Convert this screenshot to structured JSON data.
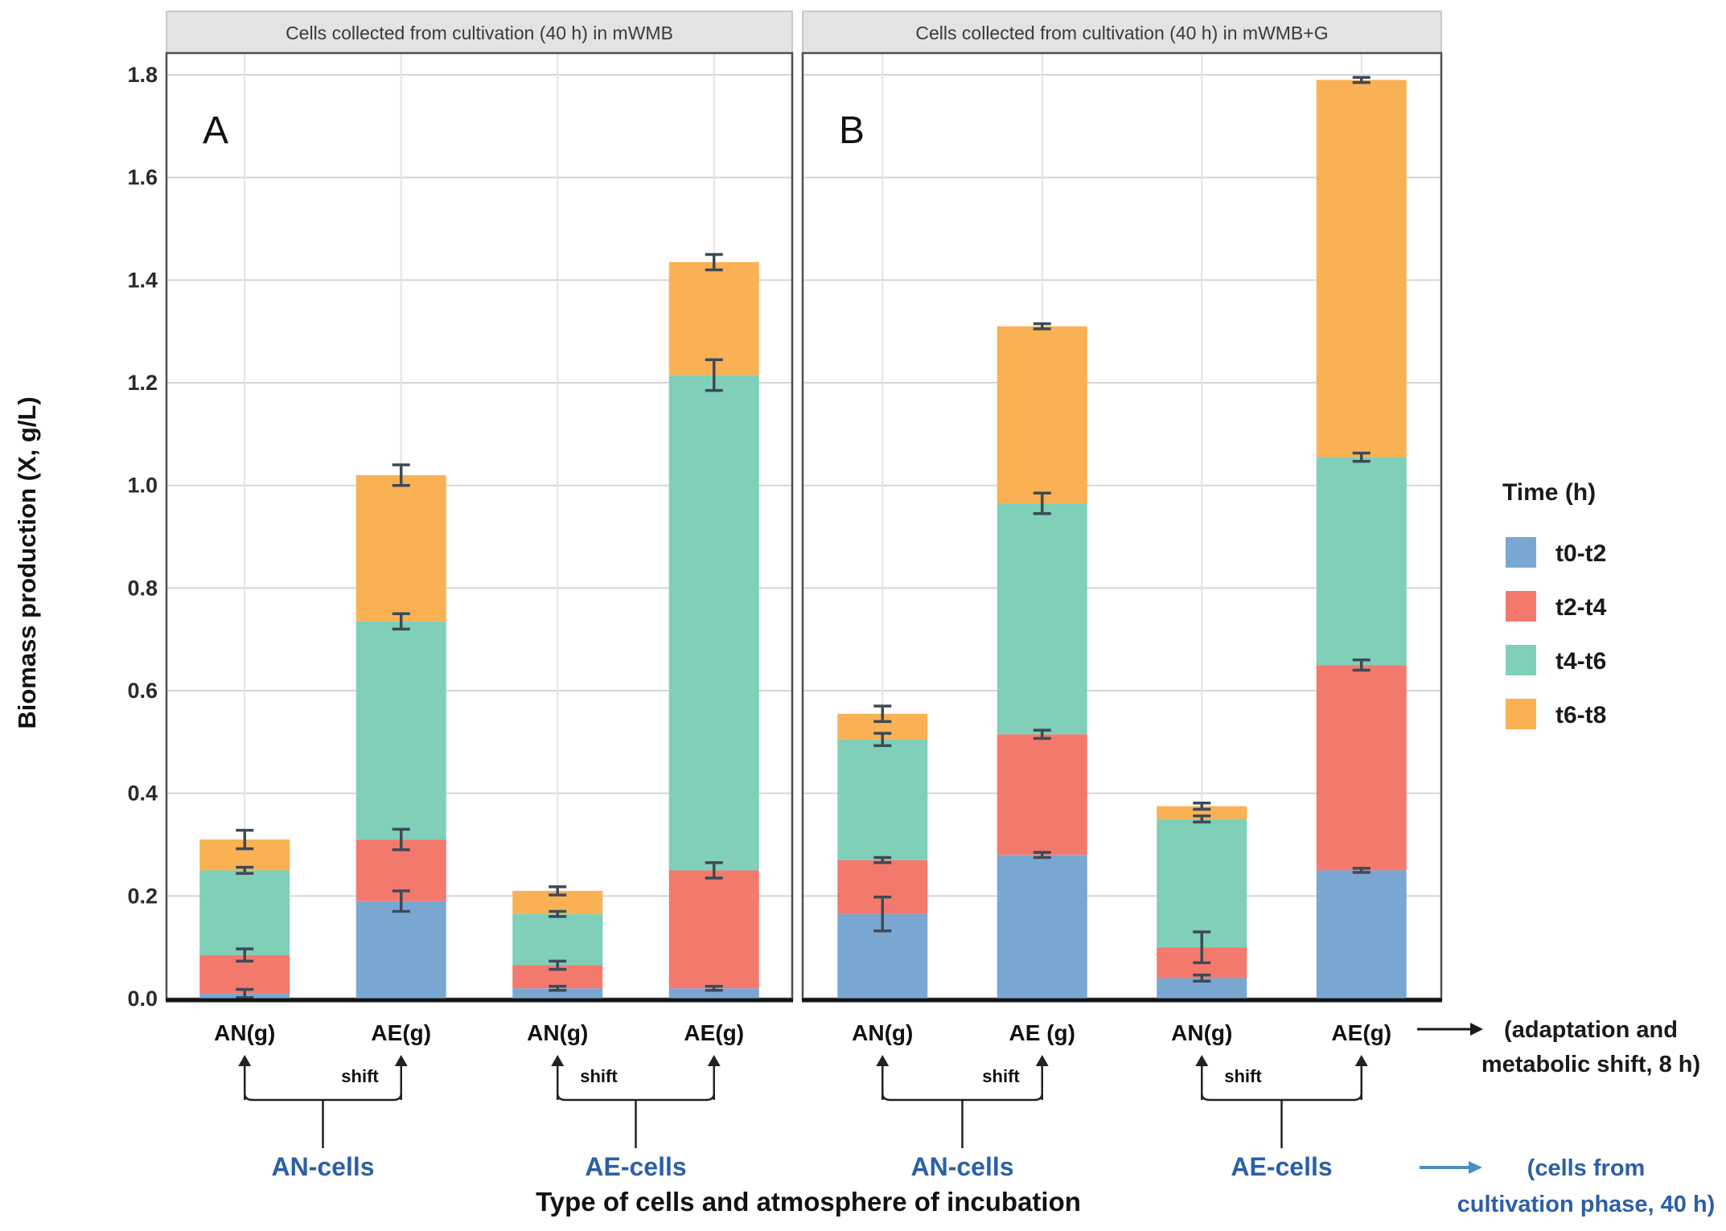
{
  "figure": {
    "y_axis": {
      "label": "Biomass production (X, g/L)"
    },
    "x_axis": {
      "title": "Type of cells and atmosphere of incubation"
    },
    "legend": {
      "title": "Time (h)",
      "entries": [
        {
          "label": "t0-t2",
          "color": "#79a7d2"
        },
        {
          "label": "t2-t4",
          "color": "#f4796d"
        },
        {
          "label": "t4-t6",
          "color": "#7fcfb9"
        },
        {
          "label": "t6-t8",
          "color": "#f9b153"
        }
      ]
    },
    "annotations": {
      "shift_label": "shift",
      "adaptation_note_line1": "(adaptation and",
      "adaptation_note_line2": "metabolic shift, 8 h)",
      "cells_note_line1": "(cells from",
      "cells_note_line2": "cultivation phase, 40 h)",
      "group_label_color": "#2d5fa6",
      "blue_arrow_color": "#4a8ec2"
    }
  },
  "chart_data": {
    "type": "bar",
    "stacked": true,
    "ylabel": "Biomass production (X, g/L)",
    "xlabel": "Type of cells and atmosphere of incubation",
    "ylim": [
      0,
      1.8
    ],
    "ytick_step": 0.2,
    "grid": true,
    "legend_position": "right",
    "series": [
      "t0-t2",
      "t2-t4",
      "t4-t6",
      "t6-t8"
    ],
    "colors": {
      "t0-t2": "#79a7d2",
      "t2-t4": "#f4796d",
      "t4-t6": "#7fcfb9",
      "t6-t8": "#f9b153"
    },
    "panels": [
      {
        "letter": "A",
        "title": "Cells collected from cultivation (40 h) in mWMB",
        "groups": [
          {
            "label": "AN-cells",
            "bars": [
              {
                "tick": "AN(g)",
                "segments": [
                  0.01,
                  0.075,
                  0.165,
                  0.06
                ],
                "errors": [
                  0.008,
                  0.012,
                  0.006,
                  0.018
                ]
              },
              {
                "tick": "AE(g)",
                "segments": [
                  0.19,
                  0.12,
                  0.425,
                  0.285
                ],
                "errors": [
                  0.02,
                  0.02,
                  0.015,
                  0.02
                ]
              }
            ]
          },
          {
            "label": "AE-cells",
            "bars": [
              {
                "tick": "AN(g)",
                "segments": [
                  0.02,
                  0.045,
                  0.1,
                  0.045
                ],
                "errors": [
                  0.004,
                  0.008,
                  0.005,
                  0.008
                ]
              },
              {
                "tick": "AE(g)",
                "segments": [
                  0.02,
                  0.23,
                  0.965,
                  0.22
                ],
                "errors": [
                  0.004,
                  0.015,
                  0.03,
                  0.015
                ]
              }
            ]
          }
        ]
      },
      {
        "letter": "B",
        "title": "Cells collected from cultivation (40 h) in mWMB+G",
        "groups": [
          {
            "label": "AN-cells",
            "bars": [
              {
                "tick": "AN(g)",
                "segments": [
                  0.165,
                  0.105,
                  0.235,
                  0.05
                ],
                "errors": [
                  0.033,
                  0.005,
                  0.012,
                  0.015
                ]
              },
              {
                "tick": "AE (g)",
                "segments": [
                  0.28,
                  0.235,
                  0.45,
                  0.345
                ],
                "errors": [
                  0.005,
                  0.008,
                  0.02,
                  0.005
                ]
              }
            ]
          },
          {
            "label": "AE-cells",
            "bars": [
              {
                "tick": "AN(g)",
                "segments": [
                  0.04,
                  0.06,
                  0.25,
                  0.025
                ],
                "errors": [
                  0.006,
                  0.03,
                  0.006,
                  0.006
                ]
              },
              {
                "tick": "AE(g)",
                "segments": [
                  0.25,
                  0.4,
                  0.405,
                  0.735
                ],
                "errors": [
                  0.004,
                  0.01,
                  0.008,
                  0.005
                ]
              }
            ]
          }
        ]
      }
    ]
  }
}
